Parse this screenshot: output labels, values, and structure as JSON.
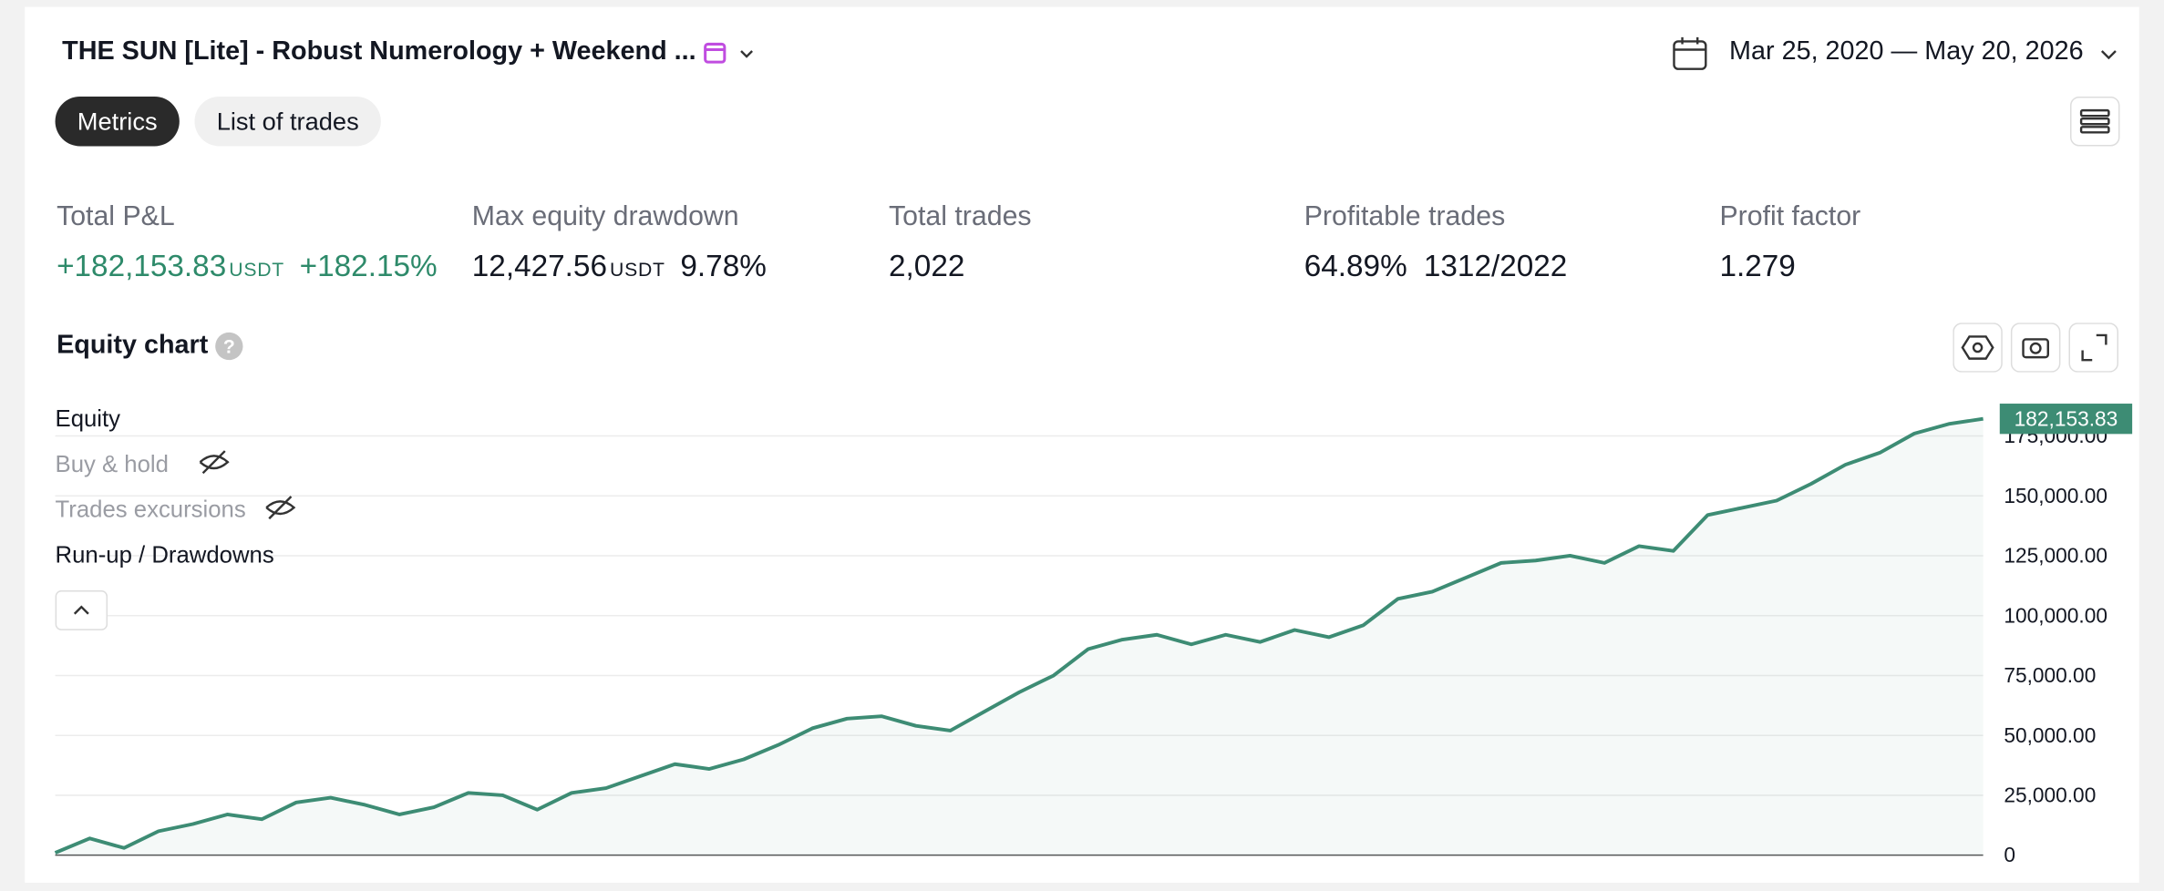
{
  "header": {
    "title": "THE SUN [Lite] - Robust Numerology + Weekend ...",
    "date_range": "Mar 25, 2020 — May 20, 2026"
  },
  "tabs": [
    "Metrics",
    "List of trades"
  ],
  "metrics": [
    {
      "label": "Total P&L",
      "value": "+182,153.83",
      "unit": "USDT",
      "extra": "+182.15%"
    },
    {
      "label": "Max equity drawdown",
      "value": "12,427.56",
      "unit": "USDT",
      "extra": "9.78%"
    },
    {
      "label": "Total trades",
      "value": "2,022"
    },
    {
      "label": "Profitable trades",
      "value": "64.89%",
      "extra": "1312/2022"
    },
    {
      "label": "Profit factor",
      "value": "1.279"
    }
  ],
  "chart_data": {
    "type": "area",
    "title": "Equity chart",
    "legend": [
      "Equity",
      "Buy & hold",
      "Trades excursions",
      "Run-up / Drawdowns"
    ],
    "series": [
      {
        "name": "Equity",
        "color": "#3d8c74",
        "last_label": "182,153.83",
        "values": [
          1000,
          7000,
          3000,
          10000,
          13000,
          17000,
          15000,
          22000,
          24000,
          21000,
          17000,
          20000,
          26000,
          25000,
          19000,
          26000,
          28000,
          33000,
          38000,
          36000,
          40000,
          46000,
          53000,
          57000,
          58000,
          54000,
          52000,
          60000,
          68000,
          75000,
          86000,
          90000,
          92000,
          88000,
          92000,
          89000,
          94000,
          91000,
          96000,
          107000,
          110000,
          116000,
          122000,
          123000,
          125000,
          122000,
          129000,
          127000,
          142000,
          145000,
          148000,
          155000,
          163000,
          168000,
          176000,
          180000,
          182153.83
        ]
      }
    ],
    "ylim": [
      0,
      190000
    ],
    "yticks": [
      0,
      {
        "value": 25000,
        "label": "25,000.00"
      },
      {
        "value": 50000,
        "label": "50,000.00"
      },
      {
        "value": 75000,
        "label": "75,000.00"
      },
      {
        "value": 100000,
        "label": "100,000.00"
      },
      {
        "value": 125000,
        "label": "125,000.00"
      },
      {
        "value": 150000,
        "label": "150,000.00"
      },
      {
        "value": 175000,
        "label": "175,000.00"
      }
    ],
    "grid": true
  }
}
